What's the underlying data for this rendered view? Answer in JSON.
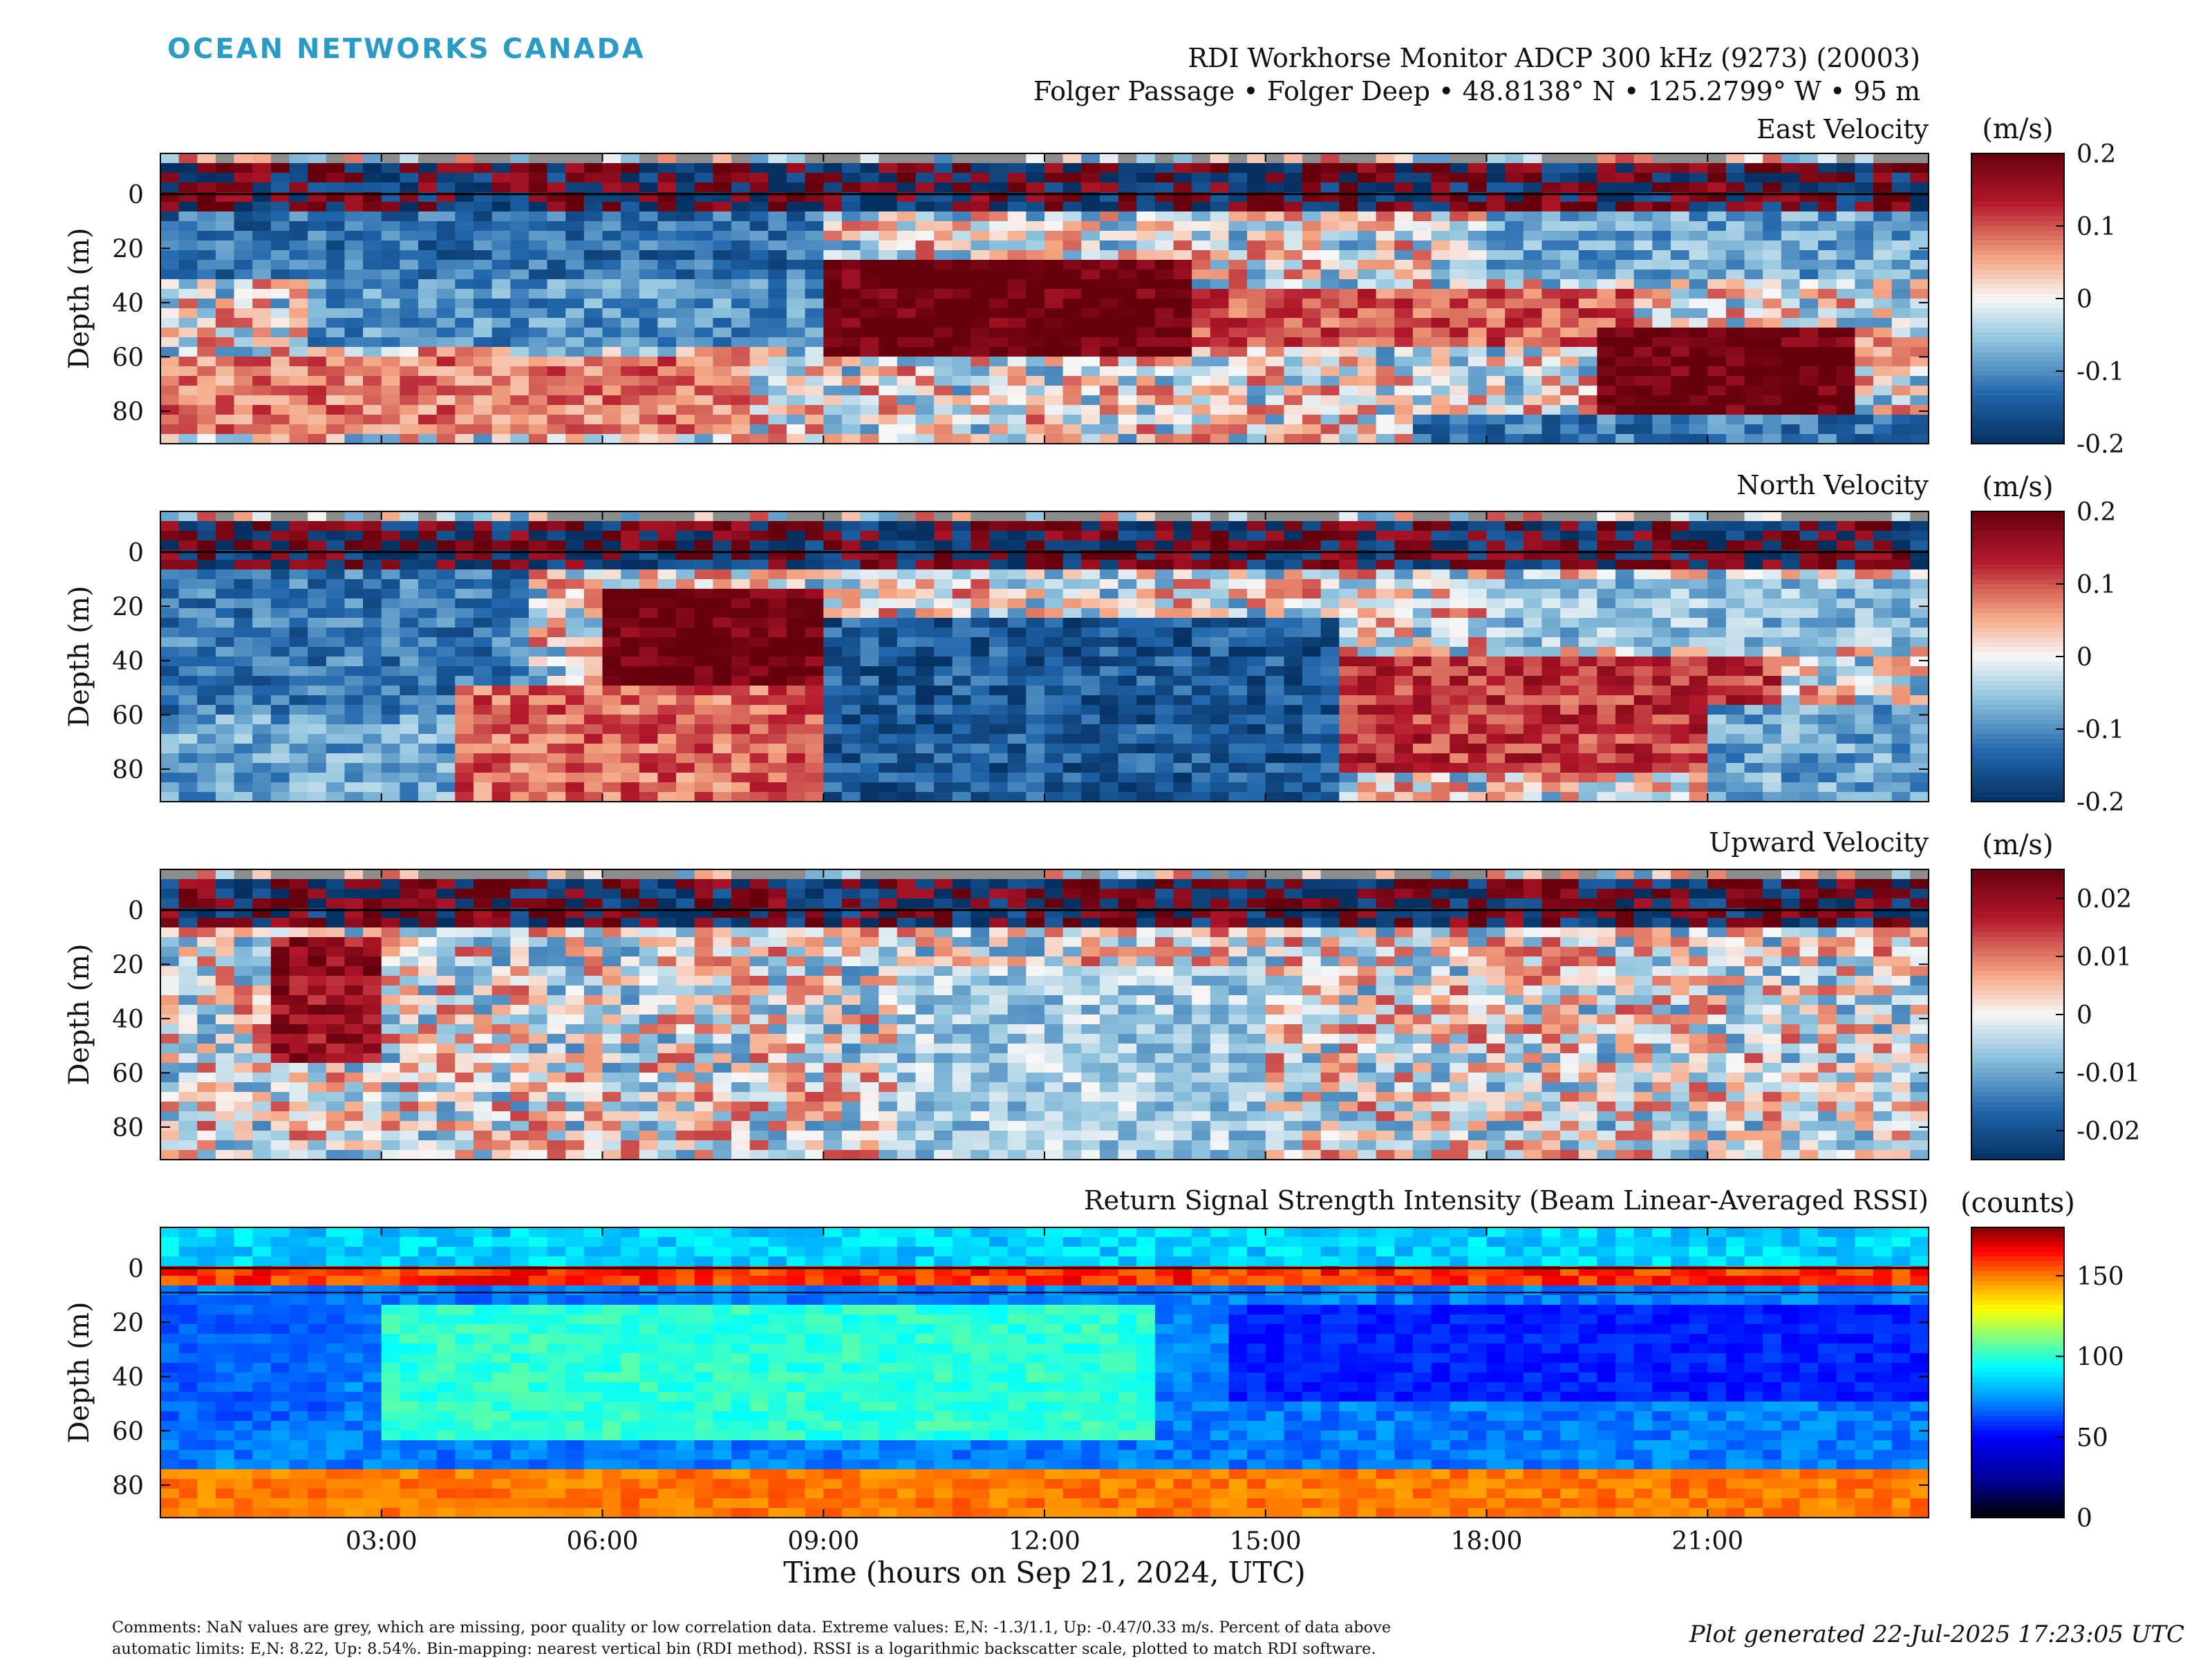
{
  "header": {
    "logo": "OCEAN NETWORKS CANADA",
    "instrument": "RDI Workhorse Monitor ADCP 300 kHz (9273) (20003)",
    "location": "Folger Passage • Folger Deep • 48.8138° N • 125.2799° W • 95 m"
  },
  "chart_data": [
    {
      "type": "heatmap",
      "title": "East Velocity",
      "ylabel": "Depth (m)",
      "yticks": [
        "0",
        "20",
        "40",
        "60",
        "80"
      ],
      "ylim": [
        -15,
        92
      ],
      "colorbar": {
        "unit": "(m/s)",
        "ticks": [
          "0.2",
          "0.1",
          "0",
          "-0.1",
          "-0.2"
        ],
        "range": [
          -0.2,
          0.2
        ],
        "colormap": "blue-white-red"
      },
      "features": [
        {
          "t0": 0,
          "t1": 9,
          "d0": 5,
          "d1": 30,
          "v": -0.13
        },
        {
          "t0": 2,
          "t1": 10,
          "d0": 30,
          "d1": 55,
          "v": -0.1
        },
        {
          "t0": 0,
          "t1": 8,
          "d0": 60,
          "d1": 90,
          "v": 0.08
        },
        {
          "t0": 9,
          "t1": 14,
          "d0": 25,
          "d1": 60,
          "v": 0.2
        },
        {
          "t0": 14,
          "t1": 20,
          "d0": 35,
          "d1": 55,
          "v": 0.1
        },
        {
          "t0": 19.5,
          "t1": 23,
          "d0": 50,
          "d1": 80,
          "v": 0.2
        },
        {
          "t0": 18,
          "t1": 24,
          "d0": 5,
          "d1": 30,
          "v": -0.08
        },
        {
          "t0": 17,
          "t1": 24,
          "d0": 80,
          "d1": 92,
          "v": -0.12
        }
      ]
    },
    {
      "type": "heatmap",
      "title": "North Velocity",
      "ylabel": "Depth (m)",
      "yticks": [
        "0",
        "20",
        "40",
        "60",
        "80"
      ],
      "ylim": [
        -15,
        92
      ],
      "colorbar": {
        "unit": "(m/s)",
        "ticks": [
          "0.2",
          "0.1",
          "0",
          "-0.1",
          "-0.2"
        ],
        "range": [
          -0.2,
          0.2
        ],
        "colormap": "blue-white-red"
      },
      "features": [
        {
          "t0": 0,
          "t1": 5,
          "d0": 5,
          "d1": 60,
          "v": -0.12
        },
        {
          "t0": 0,
          "t1": 4,
          "d0": 60,
          "d1": 92,
          "v": -0.08
        },
        {
          "t0": 6,
          "t1": 9,
          "d0": 15,
          "d1": 50,
          "v": 0.2
        },
        {
          "t0": 4,
          "t1": 9,
          "d0": 50,
          "d1": 92,
          "v": 0.09
        },
        {
          "t0": 9,
          "t1": 16,
          "d0": 25,
          "d1": 92,
          "v": -0.15
        },
        {
          "t0": 16,
          "t1": 22,
          "d0": 40,
          "d1": 80,
          "v": 0.12
        },
        {
          "t0": 18,
          "t1": 24,
          "d0": 10,
          "d1": 35,
          "v": -0.06
        },
        {
          "t0": 21,
          "t1": 24,
          "d0": 55,
          "d1": 92,
          "v": -0.08
        }
      ]
    },
    {
      "type": "heatmap",
      "title": "Upward Velocity",
      "ylabel": "Depth (m)",
      "yticks": [
        "0",
        "20",
        "40",
        "60",
        "80"
      ],
      "ylim": [
        -15,
        92
      ],
      "colorbar": {
        "unit": "(m/s)",
        "ticks": [
          "0.02",
          "0.01",
          "0",
          "-0.01",
          "-0.02"
        ],
        "range": [
          -0.025,
          0.025
        ],
        "colormap": "blue-white-red"
      },
      "features": [
        {
          "t0": 1.5,
          "t1": 3,
          "d0": 10,
          "d1": 55,
          "v": 0.02
        },
        {
          "t0": 10,
          "t1": 15,
          "d0": 20,
          "d1": 92,
          "v": -0.006
        }
      ]
    },
    {
      "type": "heatmap",
      "title": "Return Signal Strength Intensity (Beam Linear-Averaged RSSI)",
      "xlabel": "Time (hours on Sep 21, 2024, UTC)",
      "ylabel": "Depth (m)",
      "yticks": [
        "0",
        "20",
        "40",
        "60",
        "80"
      ],
      "ylim": [
        -15,
        92
      ],
      "colorbar": {
        "unit": "(counts)",
        "ticks": [
          "150",
          "100",
          "50",
          "0"
        ],
        "range": [
          0,
          180
        ],
        "colormap": "jet"
      },
      "features": [
        {
          "t0": 0,
          "t1": 2.5,
          "d0": 12,
          "d1": 55,
          "v": 65
        },
        {
          "t0": 3,
          "t1": 13.5,
          "d0": 15,
          "d1": 65,
          "v": 100
        },
        {
          "t0": 14.5,
          "t1": 24,
          "d0": 12,
          "d1": 50,
          "v": 55
        },
        {
          "t0": 0,
          "t1": 24,
          "d0": 75,
          "d1": 92,
          "v": 150
        }
      ]
    }
  ],
  "time_axis": {
    "range_hours": [
      0,
      24
    ],
    "ticks": [
      {
        "h": 3,
        "label": "03:00"
      },
      {
        "h": 6,
        "label": "06:00"
      },
      {
        "h": 9,
        "label": "09:00"
      },
      {
        "h": 12,
        "label": "12:00"
      },
      {
        "h": 15,
        "label": "15:00"
      },
      {
        "h": 18,
        "label": "18:00"
      },
      {
        "h": 21,
        "label": "21:00"
      }
    ]
  },
  "footer": {
    "comments_line1": "Comments: NaN values are grey, which are missing, poor quality or low correlation data. Extreme values: E,N: -1.3/1.1, Up: -0.47/0.33 m/s. Percent of data above",
    "comments_line2": "automatic limits: E,N: 8.22, Up: 8.54%. Bin-mapping: nearest vertical bin (RDI method). RSSI is a logarithmic backscatter scale, plotted to match RDI software.",
    "generated": "Plot generated 22-Jul-2025 17:23:05 UTC"
  },
  "colors": {
    "nan": "#8c8c8c",
    "logo": "#2a9bc4",
    "axis": "#000000"
  }
}
